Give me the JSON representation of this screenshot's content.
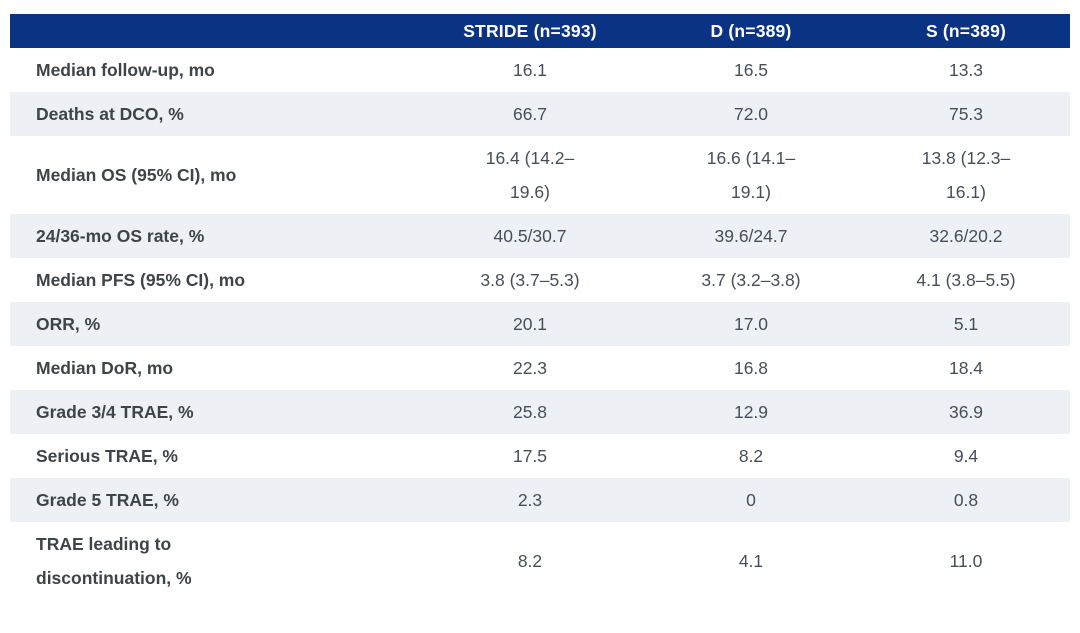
{
  "chart_data": {
    "type": "table",
    "title": "",
    "columns": [
      "",
      "STRIDE (n=393)",
      "D (n=389)",
      "S (n=389)"
    ],
    "rows": [
      {
        "label": "Median follow-up, mo",
        "values": [
          "16.1",
          "16.5",
          "13.3"
        ]
      },
      {
        "label": "Deaths at DCO, %",
        "values": [
          "66.7",
          "72.0",
          "75.3"
        ]
      },
      {
        "label": "Median OS (95% CI), mo",
        "values": [
          "16.4 (14.2–\n19.6)",
          "16.6 (14.1–\n19.1)",
          "13.8 (12.3–\n16.1)"
        ]
      },
      {
        "label": "24/36-mo OS rate, %",
        "values": [
          "40.5/30.7",
          "39.6/24.7",
          "32.6/20.2"
        ]
      },
      {
        "label": "Median PFS (95% CI), mo",
        "values": [
          "3.8 (3.7–5.3)",
          "3.7 (3.2–3.8)",
          "4.1 (3.8–5.5)"
        ]
      },
      {
        "label": "ORR, %",
        "values": [
          "20.1",
          "17.0",
          "5.1"
        ]
      },
      {
        "label": "Median DoR, mo",
        "values": [
          "22.3",
          "16.8",
          "18.4"
        ]
      },
      {
        "label": "Grade 3/4 TRAE, %",
        "values": [
          "25.8",
          "12.9",
          "36.9"
        ]
      },
      {
        "label": "Serious TRAE, %",
        "values": [
          "17.5",
          "8.2",
          "9.4"
        ]
      },
      {
        "label": "Grade 5 TRAE, %",
        "values": [
          "2.3",
          "0",
          "0.8"
        ]
      },
      {
        "label": "TRAE leading to\ndiscontinuation, %",
        "values": [
          "8.2",
          "4.1",
          "11.0"
        ]
      }
    ]
  },
  "colors": {
    "header_bg": "#0b3384",
    "header_text": "#ffffff",
    "stripe_bg": "#edf0f5",
    "label_text": "#3f4448",
    "value_text": "#474e58"
  }
}
